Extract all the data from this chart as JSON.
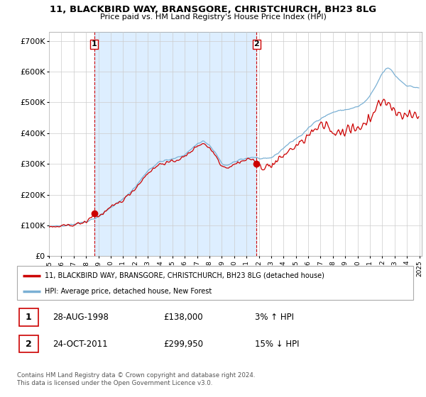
{
  "title": "11, BLACKBIRD WAY, BRANSGORE, CHRISTCHURCH, BH23 8LG",
  "subtitle": "Price paid vs. HM Land Registry's House Price Index (HPI)",
  "ylabel_ticks": [
    "£0",
    "£100K",
    "£200K",
    "£300K",
    "£400K",
    "£500K",
    "£600K",
    "£700K"
  ],
  "ytick_vals": [
    0,
    100000,
    200000,
    300000,
    400000,
    500000,
    600000,
    700000
  ],
  "ylim": [
    0,
    730000
  ],
  "xlim_start": 1995.0,
  "xlim_end": 2025.2,
  "sale1_date": 1998.67,
  "sale1_price": 138000,
  "sale2_date": 2011.81,
  "sale2_price": 299950,
  "legend_house": "11, BLACKBIRD WAY, BRANSGORE, CHRISTCHURCH, BH23 8LG (detached house)",
  "legend_hpi": "HPI: Average price, detached house, New Forest",
  "note1_label": "1",
  "note1_date": "28-AUG-1998",
  "note1_price": "£138,000",
  "note1_hpi": "3% ↑ HPI",
  "note2_label": "2",
  "note2_date": "24-OCT-2011",
  "note2_price": "£299,950",
  "note2_hpi": "15% ↓ HPI",
  "footer": "Contains HM Land Registry data © Crown copyright and database right 2024.\nThis data is licensed under the Open Government Licence v3.0.",
  "line_color_house": "#cc0000",
  "line_color_hpi": "#7ab0d4",
  "bg_color": "#ffffff",
  "fill_color": "#ddeeff",
  "grid_color": "#cccccc"
}
